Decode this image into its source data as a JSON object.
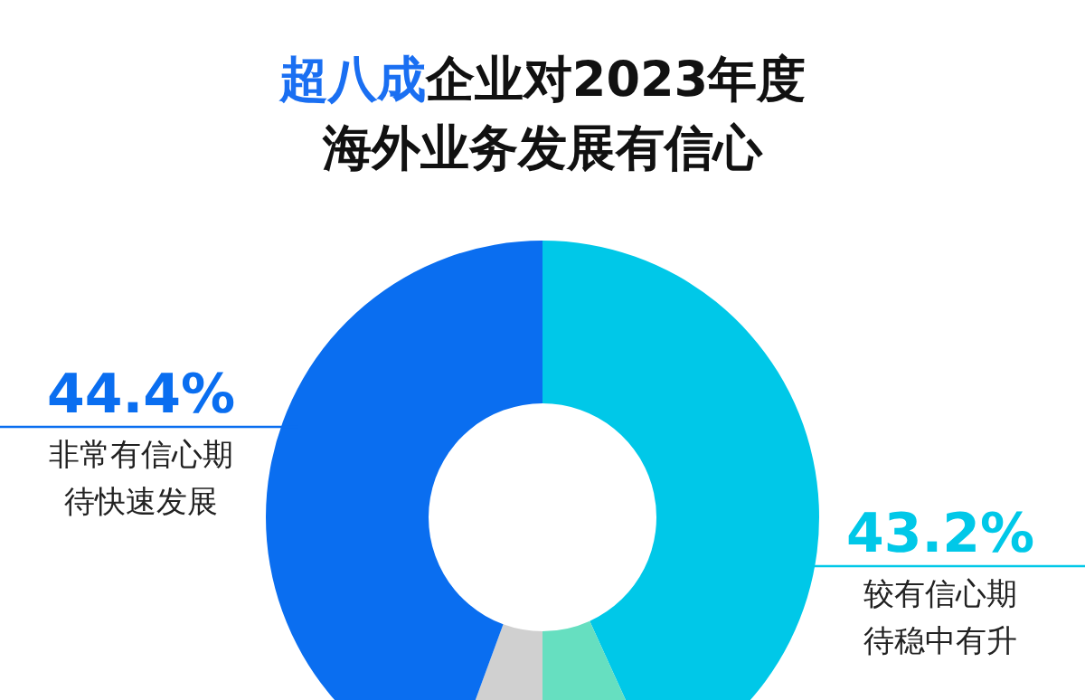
{
  "chart_data": {
    "type": "donut",
    "title": "超八成企业对2023年度海外业务发展有信心",
    "categories": [
      "较有信心期待稳中有升",
      null,
      null,
      "非常有信心期待快速发展"
    ],
    "values": [
      43.2,
      6.8,
      5.6,
      44.4
    ],
    "colors": [
      "#00c8e8",
      "#66dfc0",
      "#d0d0d0",
      "#0a6ef0"
    ],
    "value_labels": [
      "43.2%",
      null,
      null,
      "44.4%"
    ]
  }
}
